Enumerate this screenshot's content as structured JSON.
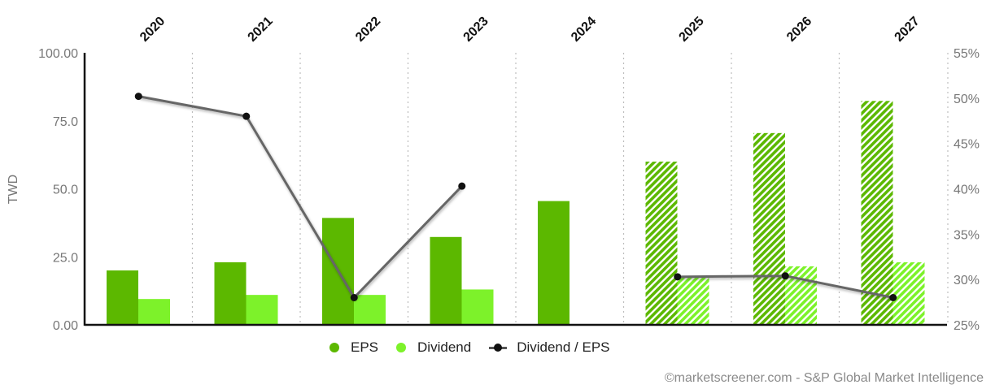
{
  "chart_data": {
    "type": "bar",
    "categories": [
      "2020",
      "2021",
      "2022",
      "2023",
      "2024",
      "2025",
      "2026",
      "2027"
    ],
    "forecast_start_index": 5,
    "series": [
      {
        "name": "EPS",
        "type": "bar",
        "axis": "left",
        "color": "#5cb800",
        "values": [
          20.0,
          23.0,
          39.3,
          32.3,
          45.5,
          60.0,
          70.5,
          82.3
        ]
      },
      {
        "name": "Dividend",
        "type": "bar",
        "axis": "left",
        "color": "#7df22a",
        "values": [
          9.5,
          11.0,
          11.0,
          13.0,
          null,
          18.0,
          21.5,
          23.0
        ]
      },
      {
        "name": "Dividend / EPS",
        "type": "line",
        "axis": "right",
        "color": "#666666",
        "values": [
          50.2,
          48.0,
          28.0,
          40.3,
          null,
          30.3,
          30.4,
          28.0
        ]
      }
    ],
    "ylabel": "TWD",
    "ylim": [
      0,
      100
    ],
    "y_ticks": [
      "0.00",
      "25.0",
      "50.0",
      "75.0",
      "100.00"
    ],
    "y2lim": [
      25,
      55
    ],
    "y2_ticks": [
      "25%",
      "30%",
      "35%",
      "40%",
      "45%",
      "50%",
      "55%"
    ],
    "grid": "vertical-dotted",
    "legend_position": "bottom"
  },
  "legend": {
    "eps": "EPS",
    "dividend": "Dividend",
    "ratio": "Dividend / EPS"
  },
  "credit": "©marketscreener.com - S&P Global Market Intelligence"
}
